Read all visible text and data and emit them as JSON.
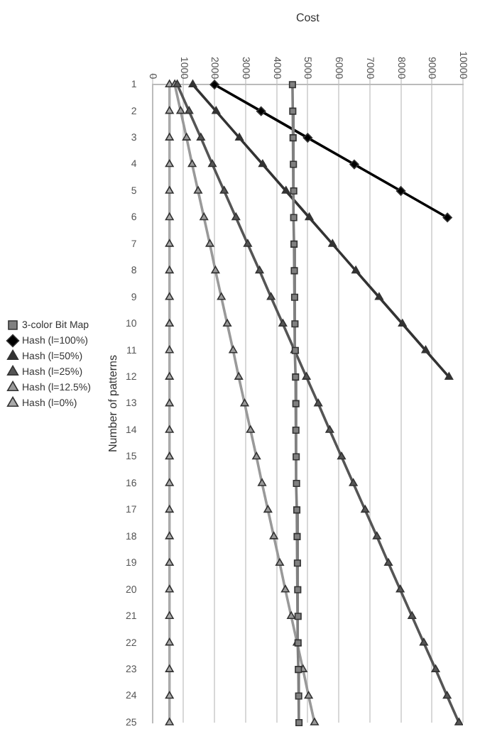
{
  "chart_data": {
    "type": "line",
    "orientation": "horizontal",
    "xlabel": "Cost",
    "ylabel": "Number of patterns",
    "categories": [
      "1",
      "2",
      "3",
      "4",
      "5",
      "6",
      "7",
      "8",
      "9",
      "10",
      "11",
      "12",
      "13",
      "14",
      "15",
      "16",
      "17",
      "18",
      "19",
      "20",
      "21",
      "22",
      "23",
      "24",
      "25"
    ],
    "xlim": [
      0,
      10000
    ],
    "xticks": [
      0,
      1000,
      2000,
      3000,
      4000,
      5000,
      6000,
      7000,
      8000,
      9000,
      10000
    ],
    "grid": "x",
    "legend": "left",
    "series": [
      {
        "name": "3-color Bit Map",
        "color": "#808080",
        "marker": "square",
        "values": [
          4510,
          4520,
          4530,
          4540,
          4550,
          4550,
          4560,
          4570,
          4580,
          4590,
          4600,
          4610,
          4620,
          4620,
          4630,
          4640,
          4650,
          4660,
          4670,
          4680,
          4690,
          4690,
          4700,
          4710,
          4720
        ]
      },
      {
        "name": "Hash (l=100%)",
        "color": "#000000",
        "marker": "diamond",
        "values": [
          2000,
          3500,
          5000,
          6500,
          8000,
          9500,
          null,
          null,
          null,
          null,
          null,
          null,
          null,
          null,
          null,
          null,
          null,
          null,
          null,
          null,
          null,
          null,
          null,
          null,
          null
        ]
      },
      {
        "name": "Hash (l=50%)",
        "color": "#333333",
        "marker": "triangle",
        "values": [
          1300,
          2050,
          2800,
          3550,
          4300,
          5050,
          5800,
          6550,
          7300,
          8050,
          8800,
          9550,
          null,
          null,
          null,
          null,
          null,
          null,
          null,
          null,
          null,
          null,
          null,
          null,
          null
        ]
      },
      {
        "name": "Hash (l=25%)",
        "color": "#555555",
        "marker": "triangle",
        "values": [
          800,
          1180,
          1560,
          1930,
          2310,
          2690,
          3070,
          3450,
          3820,
          4200,
          4580,
          4960,
          5340,
          5710,
          6090,
          6470,
          6850,
          7230,
          7600,
          7980,
          8360,
          8740,
          9120,
          9490,
          9870
        ]
      },
      {
        "name": "Hash (l=12.5%)",
        "color": "#999999",
        "marker": "triangle",
        "values": [
          720,
          910,
          1100,
          1280,
          1470,
          1660,
          1850,
          2030,
          2220,
          2410,
          2600,
          2780,
          2970,
          3160,
          3350,
          3530,
          3720,
          3910,
          4100,
          4280,
          4470,
          4660,
          4850,
          5030,
          5220
        ]
      },
      {
        "name": "Hash (l=0%)",
        "color": "#aaaaaa",
        "marker": "triangle",
        "values": [
          550,
          550,
          550,
          550,
          550,
          550,
          550,
          550,
          550,
          550,
          550,
          550,
          550,
          550,
          550,
          550,
          550,
          550,
          550,
          550,
          550,
          550,
          550,
          550,
          550
        ]
      }
    ]
  }
}
